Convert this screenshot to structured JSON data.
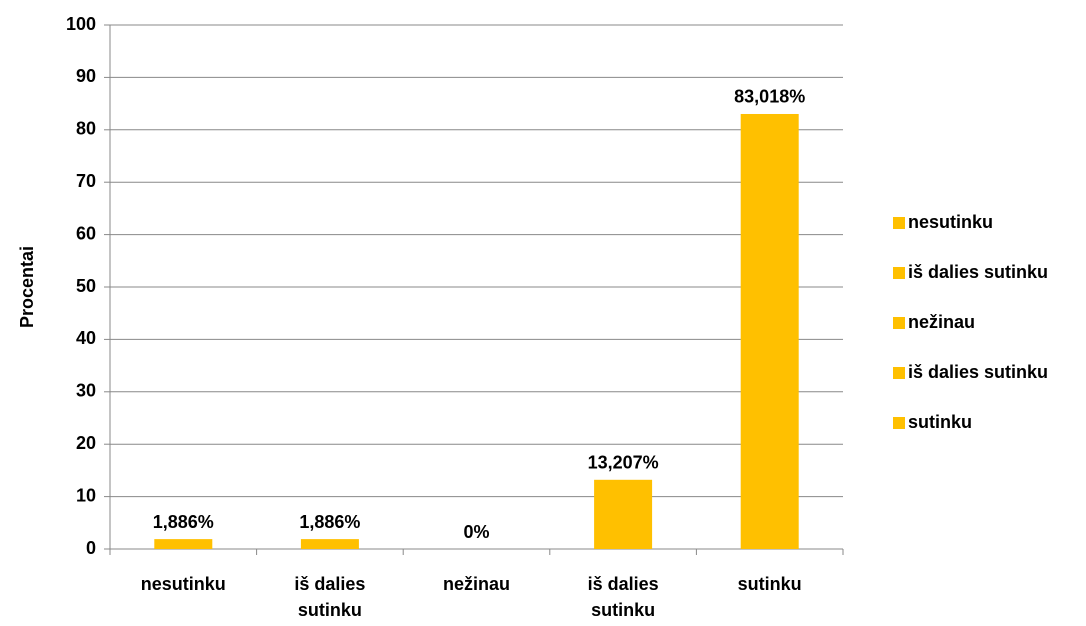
{
  "chart_data": {
    "type": "bar",
    "y_label": "Procentai",
    "categories": [
      "nesutinku",
      "iš dalies sutinku",
      "nežinau",
      "iš dalies sutinku",
      "sutinku"
    ],
    "values": [
      1.886,
      1.886,
      0,
      13.207,
      83.018
    ],
    "value_labels": [
      "1,886%",
      "1,886%",
      "0%",
      "13,207%",
      "83,018%"
    ],
    "color": "#ffc000",
    "ylim": [
      0,
      100
    ],
    "yticks": [
      0,
      10,
      20,
      30,
      40,
      50,
      60,
      70,
      80,
      90,
      100
    ],
    "grid": true,
    "legend": "right"
  }
}
